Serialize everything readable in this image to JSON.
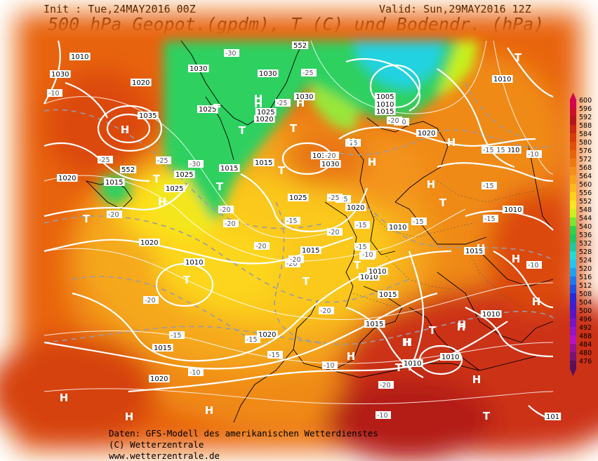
{
  "header": {
    "init": "Init : Tue,24MAY2016 00Z",
    "valid": "Valid: Sun,29MAY2016 12Z",
    "title": "500 hPa Geopot.(gpdm), T (C) und Bodendr. (hPa)"
  },
  "legend": {
    "levels": [
      "600",
      "596",
      "592",
      "588",
      "584",
      "580",
      "576",
      "572",
      "568",
      "564",
      "560",
      "556",
      "552",
      "548",
      "544",
      "540",
      "536",
      "532",
      "528",
      "524",
      "520",
      "516",
      "512",
      "508",
      "504",
      "500",
      "496",
      "492",
      "488",
      "484",
      "480",
      "476"
    ],
    "colors": [
      "#d40050",
      "#c8102a",
      "#b4141e",
      "#c82814",
      "#d63c0c",
      "#e0500a",
      "#e8640a",
      "#ee7a0e",
      "#f4901a",
      "#f8a41a",
      "#fbbc1a",
      "#fdd41a",
      "#fae61e",
      "#c8f01e",
      "#78e632",
      "#32d246",
      "#1ec864",
      "#1ec8a0",
      "#1edcdc",
      "#1ec8f0",
      "#1ea0f5",
      "#1e78f0",
      "#1e50e6",
      "#2828dc",
      "#3c1ed2",
      "#5a14c8",
      "#7814c8",
      "#9614c8",
      "#b414c8",
      "#961496",
      "#781478",
      "#5a0f5a"
    ]
  },
  "map": {
    "pressure_labels": [
      "1010",
      "1030",
      "1020",
      "1030",
      "552",
      "1010",
      "1035",
      "1030",
      "1025",
      "1030",
      "1025",
      "1020",
      "1005",
      "1010",
      "1015",
      "1020",
      "1015",
      "552",
      "1030",
      "1030",
      "1025",
      "1025",
      "1015",
      "1020",
      "1015",
      "1025",
      "1020",
      "1010",
      "1020",
      "1015",
      "1010",
      "1010",
      "1010",
      "1015",
      "1010",
      "1015",
      "1020",
      "1015",
      "1020",
      "1010",
      "1010",
      "1010",
      "1015",
      "1010",
      "101"
    ],
    "temp_labels": [
      "-10",
      "-30",
      "-25",
      "-25",
      "-25",
      "-25",
      "-20",
      "-20",
      "-25",
      "-15",
      "-30",
      "-15",
      "-15",
      "-15",
      "-25",
      "-20",
      "-20",
      "-20",
      "-20",
      "-20",
      "-20",
      "-20",
      "-15",
      "-10",
      "-15",
      "-15",
      "-20",
      "-15",
      "-15",
      "-20",
      "-15",
      "-15",
      "-15",
      "-10",
      "-10",
      "-10",
      "-10",
      "-15",
      "-10",
      "-20",
      "-20"
    ],
    "highs": [
      "H",
      "H",
      "H",
      "H",
      "H",
      "H",
      "H",
      "H",
      "H",
      "H",
      "H",
      "H",
      "H",
      "H",
      "H",
      "H",
      "H",
      "H",
      "H",
      "H",
      "H",
      "H"
    ],
    "lows": [
      "T",
      "T",
      "T",
      "T",
      "T",
      "T",
      "T",
      "T",
      "T",
      "T",
      "T",
      "T",
      "T",
      "T",
      "T",
      "T"
    ]
  },
  "footer": {
    "line1": "Daten: GFS-Modell des amerikanischen Wetterdienstes",
    "line2": "(C) Wetterzentrale",
    "line3": "www.wetterzentrale.de"
  }
}
